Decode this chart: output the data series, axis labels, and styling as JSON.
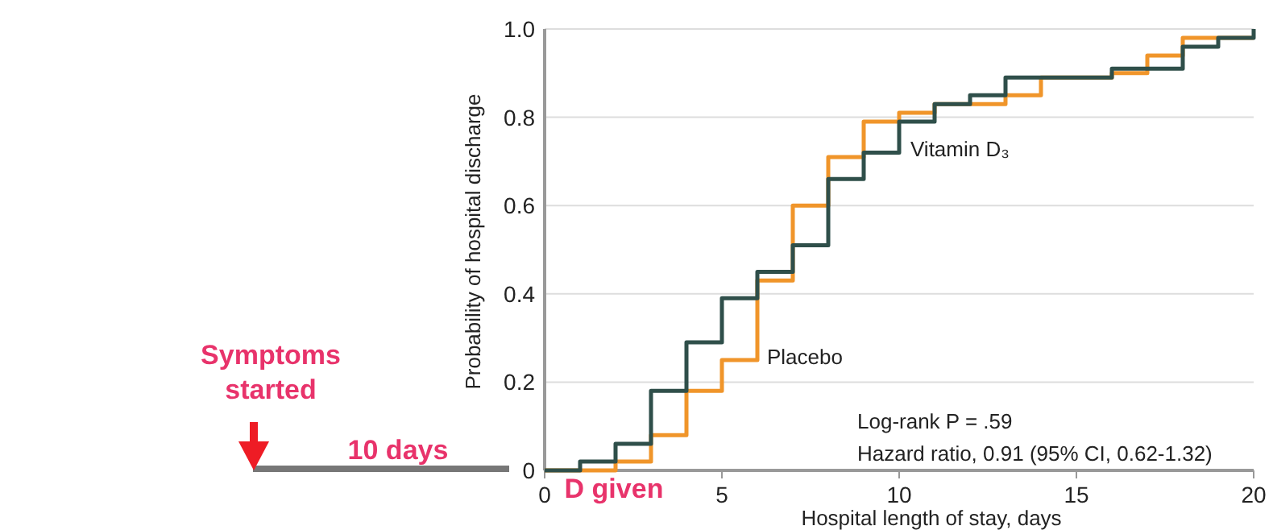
{
  "chart_data": {
    "type": "step",
    "xlabel": "Hospital length of stay, days",
    "ylabel": "Probability of hospital discharge",
    "xlim": [
      0,
      20
    ],
    "xticks": [
      0,
      5,
      10,
      15,
      20
    ],
    "ylim": [
      0,
      1
    ],
    "yticks": [
      0,
      0.2,
      0.4,
      0.6,
      0.8,
      {
        "value": 1,
        "label": "1.0"
      }
    ],
    "grid": "y",
    "line_style": "solid",
    "series": [
      {
        "name": "Vitamin D₃",
        "color": "#2f4f4a",
        "x": [
          0,
          1,
          2,
          3,
          4,
          5,
          6,
          7,
          8,
          9,
          10,
          11,
          12,
          13,
          16,
          18,
          19,
          20
        ],
        "values": [
          0,
          0.02,
          0.06,
          0.18,
          0.29,
          0.39,
          0.45,
          0.51,
          0.66,
          0.72,
          0.79,
          0.83,
          0.85,
          0.89,
          0.91,
          0.96,
          0.98,
          1
        ]
      },
      {
        "name": "Placebo",
        "color": "#f0952a",
        "x": [
          0,
          2,
          3,
          4,
          5,
          6,
          7,
          8,
          9,
          10,
          11,
          13,
          14,
          16,
          17,
          18,
          20
        ],
        "values": [
          0,
          0.02,
          0.08,
          0.18,
          0.25,
          0.43,
          0.6,
          0.71,
          0.79,
          0.81,
          0.83,
          0.85,
          0.89,
          0.9,
          0.94,
          0.98,
          0.98
        ]
      }
    ],
    "annotations": [
      "Log-rank P = .59",
      "Hazard ratio, 0.91 (95% CI, 0.62-1.32)",
      "Symptoms started",
      "10 days",
      "D given"
    ]
  }
}
